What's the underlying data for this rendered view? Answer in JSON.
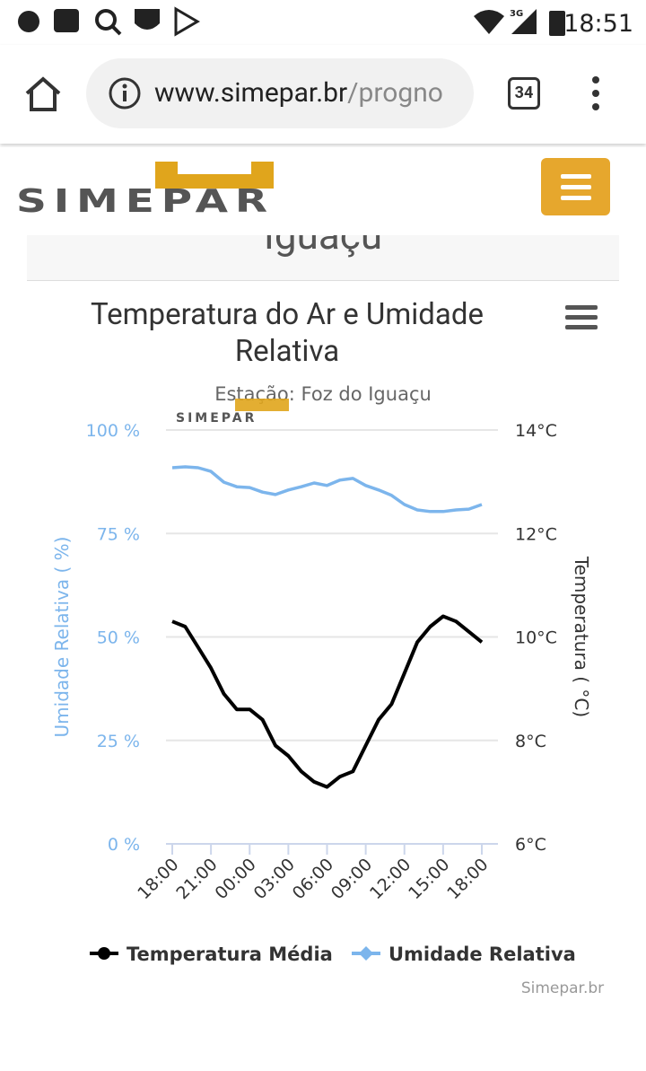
{
  "status_bar": {
    "time": "18:51",
    "network": "3G"
  },
  "browser": {
    "url_host": "www.simepar.br",
    "url_path": "/progno",
    "tab_count": 34
  },
  "site": {
    "logo": "SIMEPAR",
    "section_heading": "Iguaçu"
  },
  "chart_data": {
    "type": "line",
    "title": "Temperatura do Ar e Umidade Relativa",
    "subtitle": "Estação: Foz do Iguaçu",
    "watermark": "SIMEPAR",
    "ylabel": "Umidade Relativa ( %)",
    "y2label": "Temperatura ( °C)",
    "categories": [
      "18:00",
      null,
      null,
      "21:00",
      null,
      null,
      "00:00",
      null,
      null,
      "03:00",
      null,
      null,
      "06:00",
      null,
      null,
      "09:00",
      null,
      null,
      "12:00",
      null,
      null,
      "15:00",
      null,
      null,
      "18:00"
    ],
    "ylim": [
      0,
      100
    ],
    "yticks": [
      {
        "value": 0,
        "label": "0 %"
      },
      {
        "value": 25,
        "label": "25 %"
      },
      {
        "value": 50,
        "label": "50 %"
      },
      {
        "value": 75,
        "label": "75 %"
      },
      {
        "value": 100,
        "label": "100 %"
      }
    ],
    "y2lim": [
      6,
      14
    ],
    "y2ticks": [
      {
        "value": 6,
        "label": "6°C"
      },
      {
        "value": 8,
        "label": "8°C"
      },
      {
        "value": 10,
        "label": "10°C"
      },
      {
        "value": 12,
        "label": "12°C"
      },
      {
        "value": 14,
        "label": "14°C"
      }
    ],
    "grid": true,
    "legend": "bottom",
    "series": [
      {
        "name": "Temperatura Média",
        "color": "#000000",
        "axis": "y2",
        "values": [
          10.3,
          10.2,
          9.8,
          9.4,
          8.9,
          8.6,
          8.6,
          8.4,
          7.9,
          7.7,
          7.4,
          7.2,
          7.1,
          7.3,
          7.4,
          7.9,
          8.4,
          8.7,
          9.3,
          9.9,
          10.2,
          10.4,
          10.3,
          10.1,
          9.9
        ]
      },
      {
        "name": "Umidade Relativa",
        "color": "#7cb5ec",
        "values": [
          90.9,
          91.1,
          90.9,
          90.0,
          87.4,
          86.3,
          86.1,
          85.0,
          84.4,
          85.5,
          86.3,
          87.2,
          86.6,
          87.9,
          88.3,
          86.6,
          85.5,
          84.2,
          82.0,
          80.7,
          80.3,
          80.3,
          80.7,
          80.9,
          82.0
        ]
      }
    ],
    "credits": "Simepar.br"
  }
}
